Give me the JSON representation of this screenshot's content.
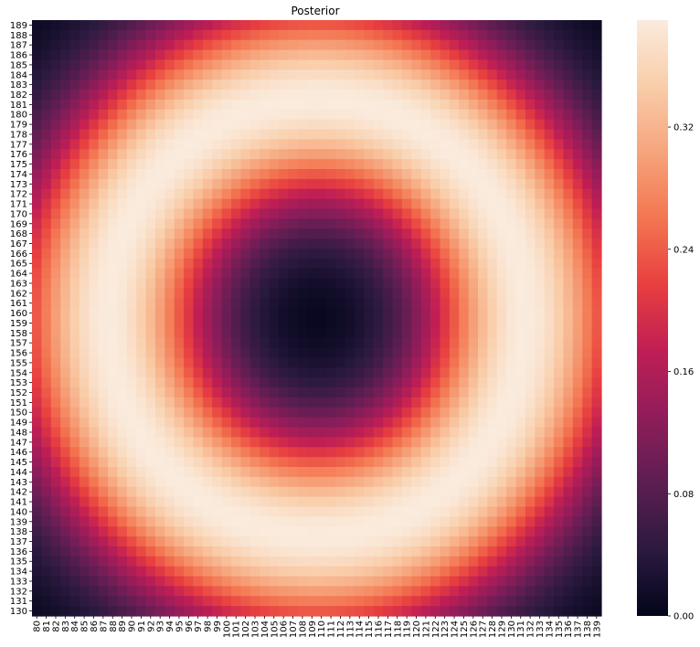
{
  "chart_data": {
    "type": "heatmap",
    "title": "Posterior",
    "xlabel": "",
    "ylabel": "",
    "x_start": 80,
    "x_end": 139,
    "y_start": 189,
    "y_end": 130,
    "colormap": "rocket",
    "colorbar": {
      "ticks": [
        "0.00",
        "0.08",
        "0.16",
        "0.24",
        "0.32"
      ],
      "vmin": 0.0,
      "vmax": 0.39
    },
    "surface": {
      "form": "ring",
      "center_x": 109.5,
      "center_y": 159.5,
      "ring_radius": 22,
      "ring_width": 7.5,
      "peak": 0.39
    },
    "colors": {
      "rocket": [
        "#03051a",
        "#2b1a3f",
        "#5c1e51",
        "#8f1d5a",
        "#bf1e55",
        "#e83f3f",
        "#f37651",
        "#f6a47c",
        "#f9cda9",
        "#faebdd"
      ]
    }
  }
}
